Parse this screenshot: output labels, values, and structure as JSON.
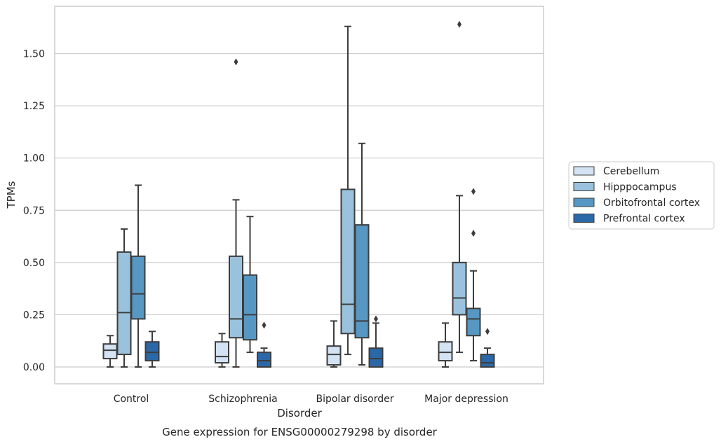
{
  "chart_data": {
    "type": "boxplot",
    "title": "",
    "caption": "Gene expression for ENSG00000279298 by disorder",
    "xlabel": "Disorder",
    "ylabel": "TPMs",
    "ylim": [
      -0.08,
      1.7
    ],
    "yticks": [
      "0.00",
      "0.25",
      "0.50",
      "0.75",
      "1.00",
      "1.25",
      "1.50"
    ],
    "grid": "horizontal",
    "legend_position": "right",
    "categories": [
      "Control",
      "Schizophrenia",
      "Bipolar disorder",
      "Major depression"
    ],
    "series": [
      {
        "name": "Cerebellum",
        "color": "#d4e3f3",
        "boxes": [
          {
            "whislo": 0.0,
            "q1": 0.04,
            "med": 0.08,
            "q3": 0.11,
            "whishi": 0.15,
            "fliers": []
          },
          {
            "whislo": 0.0,
            "q1": 0.02,
            "med": 0.05,
            "q3": 0.12,
            "whishi": 0.16,
            "fliers": []
          },
          {
            "whislo": 0.0,
            "q1": 0.01,
            "med": 0.06,
            "q3": 0.1,
            "whishi": 0.22,
            "fliers": []
          },
          {
            "whislo": 0.0,
            "q1": 0.03,
            "med": 0.07,
            "q3": 0.12,
            "whishi": 0.21,
            "fliers": []
          }
        ]
      },
      {
        "name": "Hipppocampus",
        "color": "#9ac2dc",
        "boxes": [
          {
            "whislo": 0.0,
            "q1": 0.06,
            "med": 0.26,
            "q3": 0.55,
            "whishi": 0.66,
            "fliers": []
          },
          {
            "whislo": 0.0,
            "q1": 0.14,
            "med": 0.23,
            "q3": 0.53,
            "whishi": 0.8,
            "fliers": [
              1.46
            ]
          },
          {
            "whislo": 0.06,
            "q1": 0.16,
            "med": 0.3,
            "q3": 0.85,
            "whishi": 1.63,
            "fliers": []
          },
          {
            "whislo": 0.07,
            "q1": 0.25,
            "med": 0.33,
            "q3": 0.5,
            "whishi": 0.82,
            "fliers": [
              1.64
            ]
          }
        ]
      },
      {
        "name": "Orbitofrontal cortex",
        "color": "#5797c3",
        "boxes": [
          {
            "whislo": 0.0,
            "q1": 0.23,
            "med": 0.35,
            "q3": 0.53,
            "whishi": 0.87,
            "fliers": []
          },
          {
            "whislo": 0.07,
            "q1": 0.13,
            "med": 0.25,
            "q3": 0.44,
            "whishi": 0.72,
            "fliers": []
          },
          {
            "whislo": 0.01,
            "q1": 0.14,
            "med": 0.22,
            "q3": 0.68,
            "whishi": 1.07,
            "fliers": []
          },
          {
            "whislo": 0.03,
            "q1": 0.15,
            "med": 0.23,
            "q3": 0.28,
            "whishi": 0.46,
            "fliers": [
              0.64,
              0.84
            ]
          }
        ]
      },
      {
        "name": "Prefrontal cortex",
        "color": "#2b68a8",
        "boxes": [
          {
            "whislo": 0.0,
            "q1": 0.03,
            "med": 0.07,
            "q3": 0.12,
            "whishi": 0.17,
            "fliers": []
          },
          {
            "whislo": 0.0,
            "q1": 0.0,
            "med": 0.03,
            "q3": 0.07,
            "whishi": 0.09,
            "fliers": [
              0.2
            ]
          },
          {
            "whislo": 0.0,
            "q1": 0.0,
            "med": 0.04,
            "q3": 0.09,
            "whishi": 0.21,
            "fliers": [
              0.23
            ]
          },
          {
            "whislo": 0.0,
            "q1": 0.0,
            "med": 0.02,
            "q3": 0.06,
            "whishi": 0.09,
            "fliers": [
              0.17
            ]
          }
        ]
      }
    ]
  }
}
